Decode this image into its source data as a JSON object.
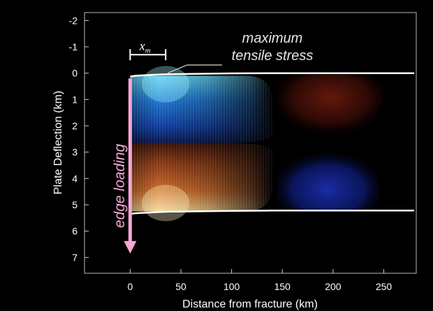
{
  "chart_data": {
    "type": "heatmap",
    "xlabel": "Distance from fracture (km)",
    "ylabel": "Plate Deflection (km)",
    "xlim": [
      -45,
      282
    ],
    "ylim": [
      -2.3,
      7.6
    ],
    "y_inverted": true,
    "x_ticks": [
      0,
      50,
      100,
      150,
      200,
      250
    ],
    "y_ticks": [
      -2,
      -1,
      0,
      1,
      2,
      3,
      4,
      5,
      6,
      7
    ],
    "plate": {
      "top_surface": {
        "x": [
          0,
          5,
          10,
          20,
          30,
          40,
          60,
          80,
          100,
          140,
          280
        ],
        "y": [
          0.13,
          0.1,
          0.09,
          0.07,
          0.05,
          0.04,
          0.03,
          0.02,
          0.01,
          0.0,
          0.0
        ]
      },
      "bottom_surface": {
        "x": [
          0,
          5,
          10,
          20,
          30,
          40,
          60,
          80,
          100,
          140,
          280
        ],
        "y": [
          5.35,
          5.32,
          5.31,
          5.29,
          5.27,
          5.26,
          5.25,
          5.24,
          5.23,
          5.22,
          5.22
        ]
      }
    },
    "stress_regions": [
      {
        "kind": "tension",
        "color": "#1f7fd6",
        "x_range": [
          0,
          140
        ],
        "y_range": [
          0.1,
          2.65
        ],
        "peak_x": 35
      },
      {
        "kind": "compression",
        "color": "#c06028",
        "x_range": [
          0,
          140
        ],
        "y_range": [
          2.65,
          5.25
        ],
        "peak_x": 35
      },
      {
        "kind": "compression",
        "color": "#5a1208",
        "x_range": [
          145,
          250
        ],
        "y_range": [
          0.05,
          2.6
        ]
      },
      {
        "kind": "tension",
        "color": "#0d1d7a",
        "x_range": [
          145,
          245
        ],
        "y_range": [
          2.6,
          5.2
        ]
      }
    ],
    "xm_bracket": {
      "x": [
        0,
        35
      ],
      "y": -0.7
    },
    "arrow": {
      "x": 0,
      "y_start": 0.2,
      "y_end": 6.8,
      "color": "#f6a6d6"
    },
    "annotations": {
      "max_tensile_line1": "maximum",
      "max_tensile_line2": "tensile stress",
      "xm_base": "x",
      "xm_sub": "m",
      "edge_loading": "edge loading"
    },
    "grid": false
  }
}
